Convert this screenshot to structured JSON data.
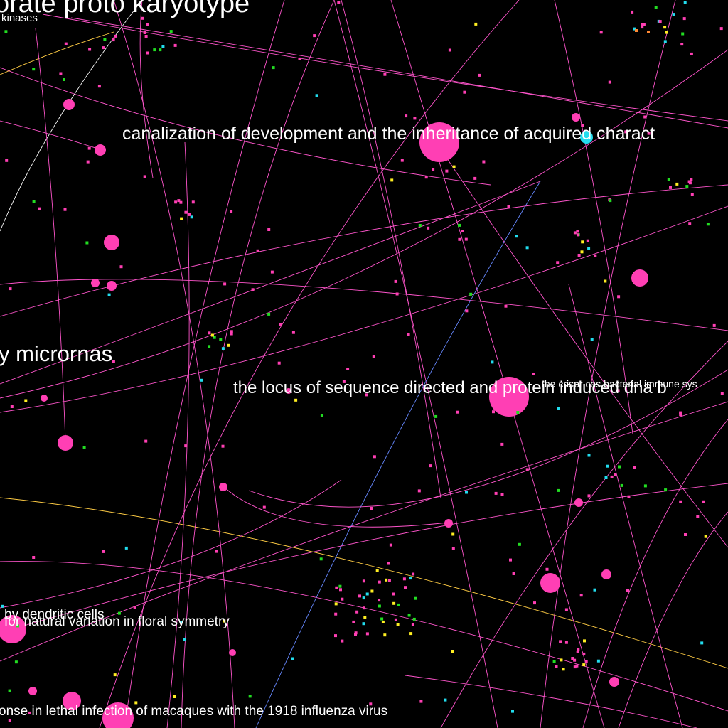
{
  "colors": {
    "background": "#000000",
    "node_primary": "#ff3fb4",
    "node_green": "#22dd22",
    "node_cyan": "#22ddee",
    "node_yellow": "#ffee22",
    "node_orange": "#ff8833",
    "edge_primary": "#ff55cc",
    "edge_yellow": "#ffcc44",
    "edge_blue": "#6688ff",
    "edge_white": "#ffffff",
    "label": "#ffffff"
  },
  "labels": {
    "l1": "orate proto karyotype",
    "l2": "kinases",
    "l3": "canalization of development and the inheritance of acquired charact",
    "l4": "y micrornas",
    "l5": "the locus of sequence directed and protein induced dna b",
    "l6": "the crispr cas bacterial immune sys",
    "l7": "by dendritic cells",
    "l8": "for natural variation in floral symmetry",
    "l9": "onse in lethal infection of macaques with the 1918 influenza virus"
  }
}
